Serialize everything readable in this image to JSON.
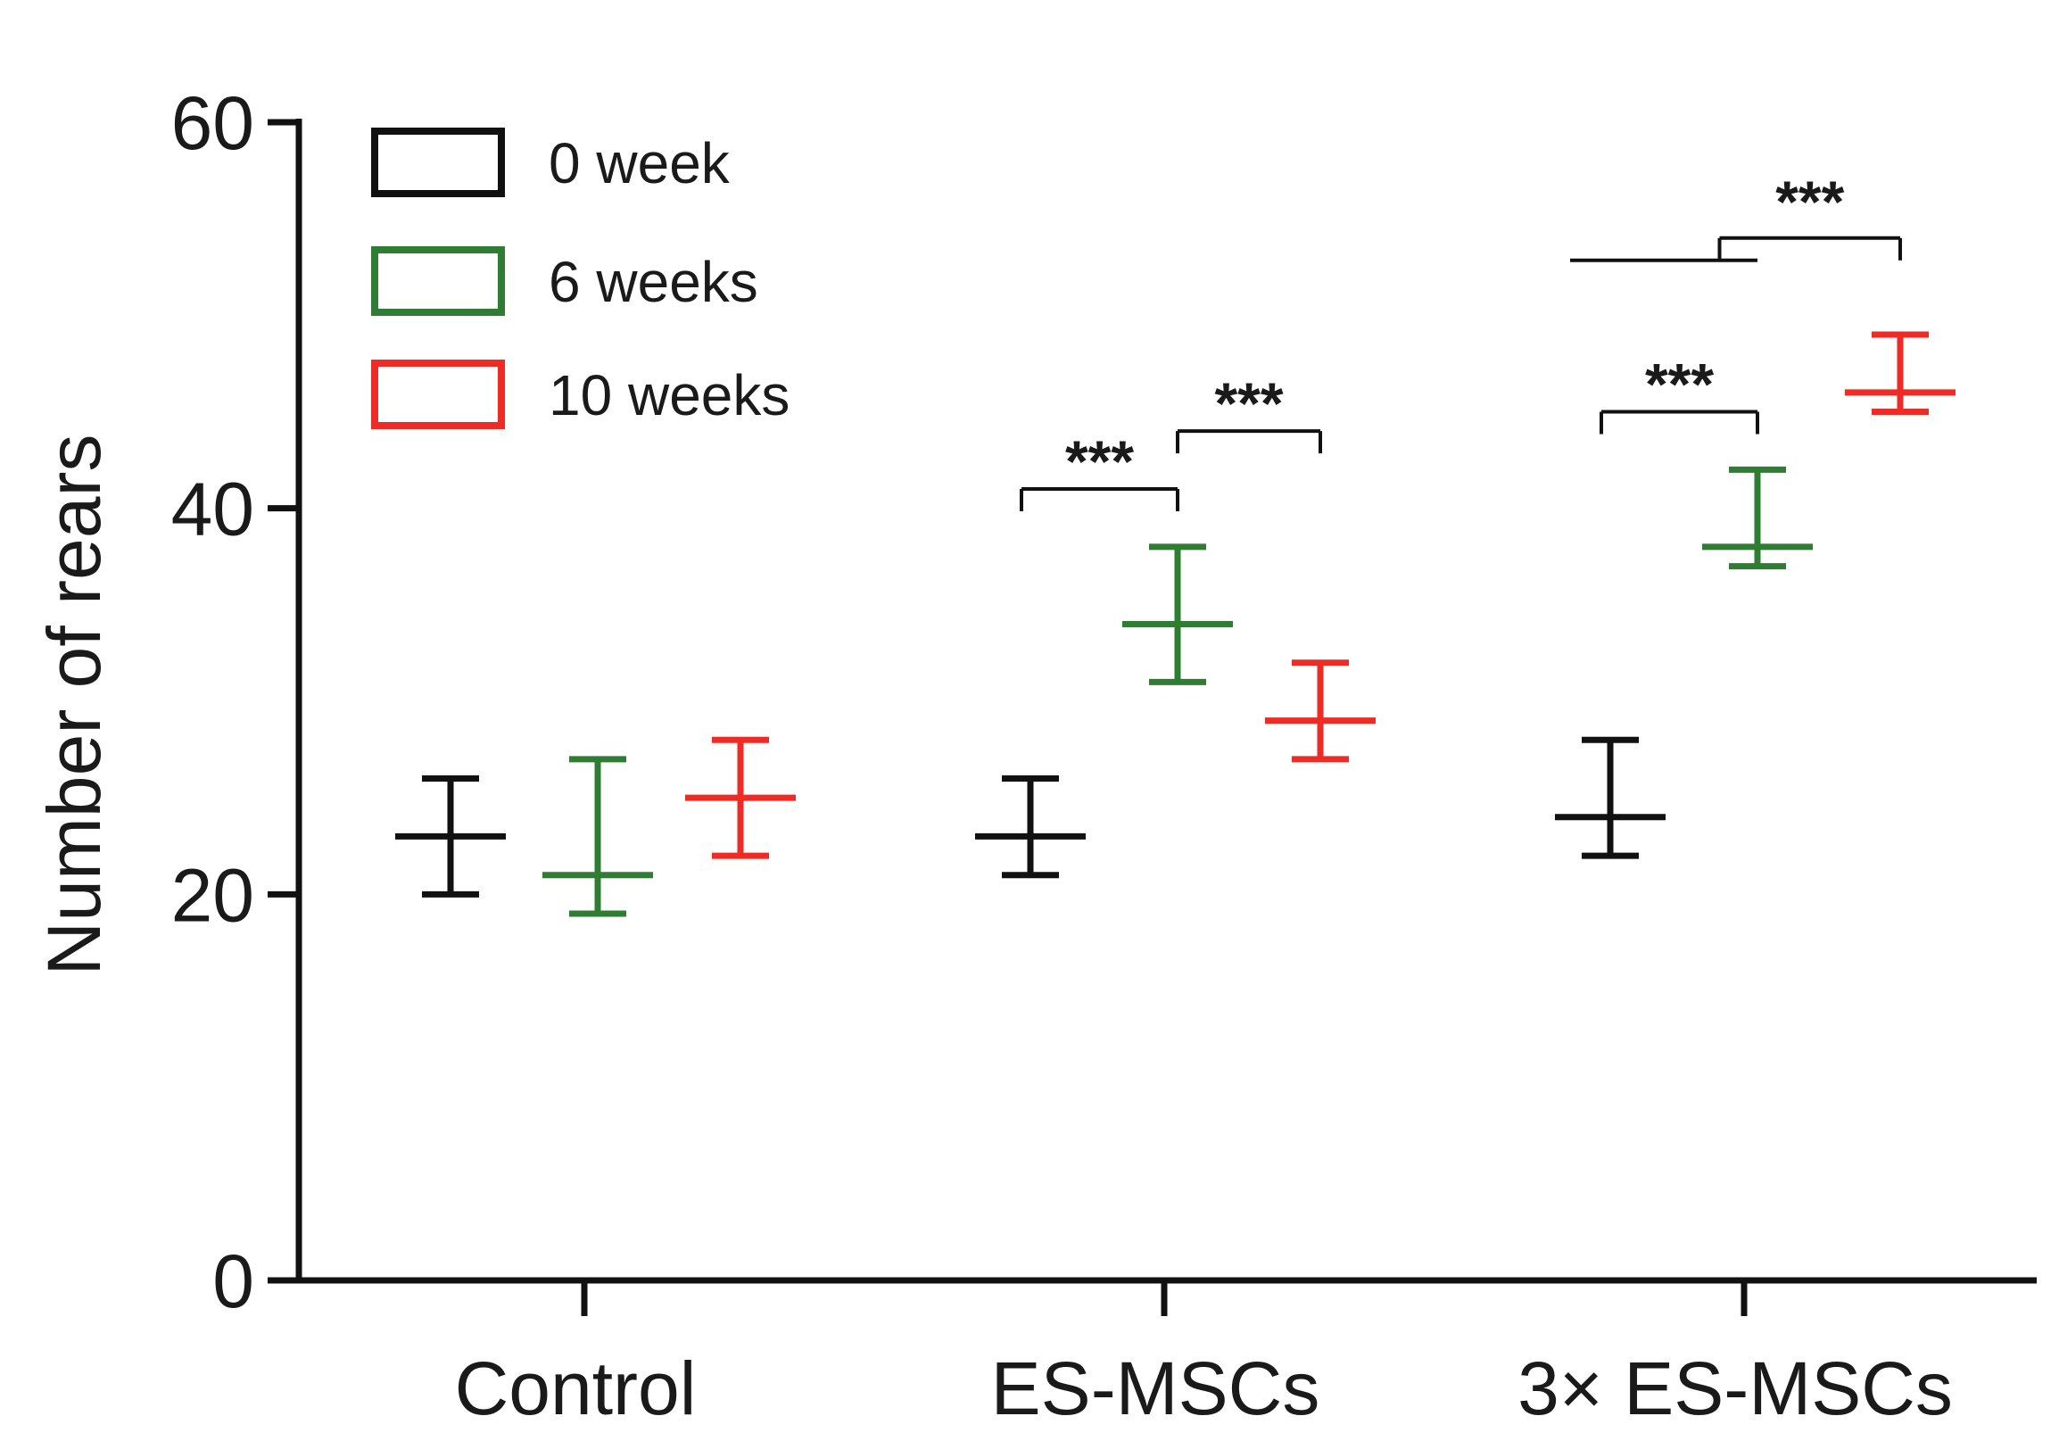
{
  "chart_data": {
    "type": "scatter",
    "title": "",
    "xlabel": "",
    "ylabel": "Number of rears",
    "ylim": [
      0,
      60
    ],
    "yticks": [
      0,
      20,
      40,
      60
    ],
    "categories": [
      "Control",
      "ES-MSCs",
      "3× ES-MSCs"
    ],
    "series": [
      {
        "name": "0 week",
        "color": "#111111",
        "points": [
          {
            "category": "Control",
            "mean": 23,
            "lower": 20,
            "upper": 26
          },
          {
            "category": "ES-MSCs",
            "mean": 23,
            "lower": 21,
            "upper": 26
          },
          {
            "category": "3× ES-MSCs",
            "mean": 24,
            "lower": 22,
            "upper": 28
          }
        ]
      },
      {
        "name": "6 weeks",
        "color": "#2e7d32",
        "points": [
          {
            "category": "Control",
            "mean": 21,
            "lower": 19,
            "upper": 27
          },
          {
            "category": "ES-MSCs",
            "mean": 34,
            "lower": 31,
            "upper": 38
          },
          {
            "category": "3× ES-MSCs",
            "mean": 38,
            "lower": 37,
            "upper": 42
          }
        ]
      },
      {
        "name": "10 weeks",
        "color": "#ee2b24",
        "points": [
          {
            "category": "Control",
            "mean": 25,
            "lower": 22,
            "upper": 28
          },
          {
            "category": "ES-MSCs",
            "mean": 29,
            "lower": 27,
            "upper": 32
          },
          {
            "category": "3× ES-MSCs",
            "mean": 46,
            "lower": 45,
            "upper": 49
          }
        ]
      }
    ],
    "significance": [
      {
        "label": "***",
        "category": "ES-MSCs",
        "from": "0 week",
        "to": "6 weeks",
        "level": 41
      },
      {
        "label": "***",
        "category": "ES-MSCs",
        "from": "6 weeks",
        "to": "10 weeks",
        "level": 44
      },
      {
        "label": "***",
        "category": "3× ES-MSCs",
        "from": "0 week",
        "to": "6 weeks",
        "level": 45
      },
      {
        "label": "***",
        "category": "3× ES-MSCs",
        "from": "0 week|6 weeks",
        "to": "10 weeks",
        "level": 54
      }
    ]
  }
}
